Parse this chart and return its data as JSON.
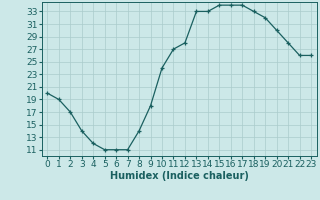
{
  "x": [
    0,
    1,
    2,
    3,
    4,
    5,
    6,
    7,
    8,
    9,
    10,
    11,
    12,
    13,
    14,
    15,
    16,
    17,
    18,
    19,
    20,
    21,
    22,
    23
  ],
  "y": [
    20,
    19,
    17,
    14,
    12,
    11,
    11,
    11,
    14,
    18,
    24,
    27,
    28,
    33,
    33,
    34,
    34,
    34,
    33,
    32,
    30,
    28,
    26,
    26
  ],
  "line_color": "#1a6060",
  "marker": "+",
  "marker_color": "#1a6060",
  "bg_color": "#cce8e8",
  "grid_color": "#aacccc",
  "xlabel": "Humidex (Indice chaleur)",
  "xlim": [
    -0.5,
    23.5
  ],
  "ylim": [
    10.0,
    34.5
  ],
  "yticks": [
    11,
    13,
    15,
    17,
    19,
    21,
    23,
    25,
    27,
    29,
    31,
    33
  ],
  "xticks": [
    0,
    1,
    2,
    3,
    4,
    5,
    6,
    7,
    8,
    9,
    10,
    11,
    12,
    13,
    14,
    15,
    16,
    17,
    18,
    19,
    20,
    21,
    22,
    23
  ],
  "xlabel_fontsize": 7,
  "tick_fontsize": 6.5,
  "line_width": 0.9,
  "marker_size": 3.5
}
